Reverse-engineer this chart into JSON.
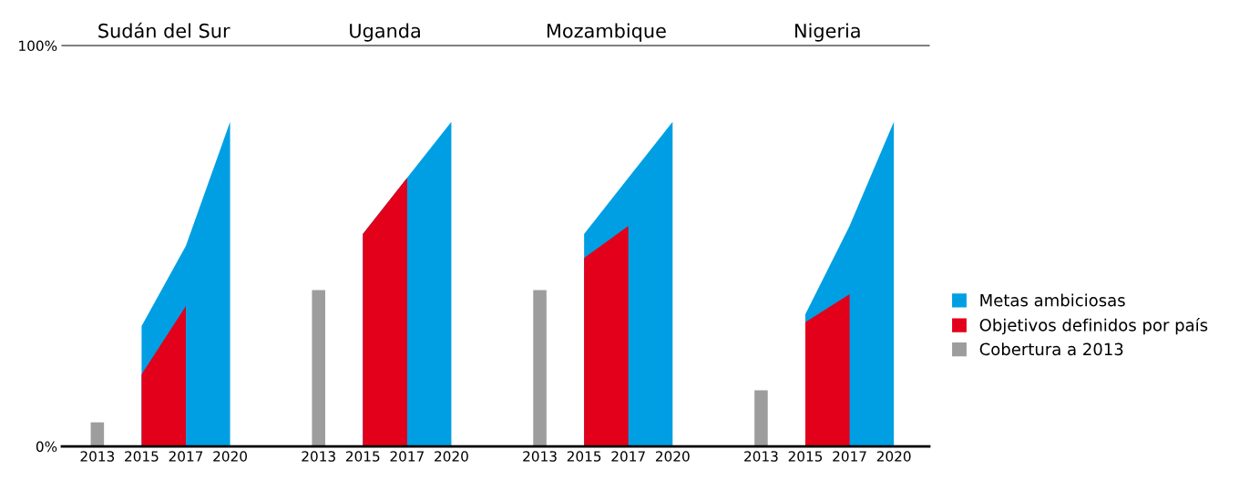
{
  "chart_data": {
    "type": "area",
    "categories": [
      "2013",
      "2015",
      "2017",
      "2020",
      null,
      "2013",
      "2015",
      "2017",
      "2020",
      null,
      "2013",
      "2015",
      "2017",
      "2020",
      null,
      "2013",
      "2015",
      "2017",
      "2020"
    ],
    "annotations": [
      "Sudán del Sur",
      "Uganda",
      "Mozambique",
      "Nigeria"
    ],
    "ylim": [
      0,
      100
    ],
    "yticks": [
      {
        "value": 0,
        "label": "0%"
      },
      {
        "value": 100,
        "label": "100%"
      }
    ],
    "legend": "right",
    "series": [
      {
        "type": "bar",
        "name": "Cobertura a 2013",
        "color": "#9d9d9d",
        "values": [
          6,
          null,
          null,
          null,
          null,
          39,
          null,
          null,
          null,
          null,
          39,
          null,
          null,
          null,
          null,
          14,
          null,
          null,
          null
        ]
      },
      {
        "name": "Metas ambiciosas",
        "color": "#009fe3",
        "values": [
          null,
          30,
          50,
          81,
          null,
          null,
          53,
          67,
          81,
          null,
          null,
          53,
          67,
          81,
          null,
          null,
          33,
          55,
          81
        ]
      },
      {
        "name": "Objetivos definidos por país",
        "color": "#e2001a",
        "values": [
          null,
          18,
          35,
          null,
          null,
          null,
          53,
          67,
          null,
          null,
          null,
          47,
          55,
          null,
          null,
          null,
          31,
          38,
          null
        ]
      }
    ]
  }
}
